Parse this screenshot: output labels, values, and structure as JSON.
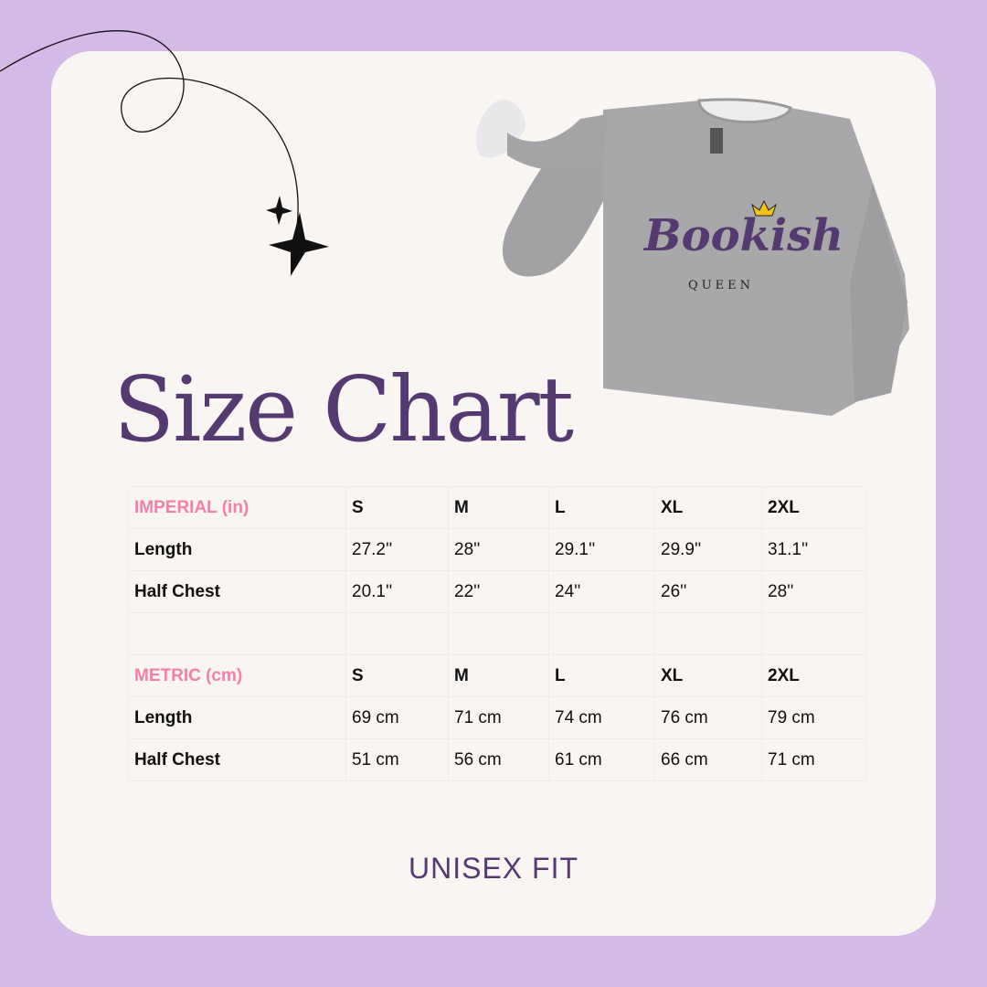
{
  "title": "Size Chart",
  "product": {
    "print_main": "Bookish",
    "print_sub": "QUEEN"
  },
  "imperial": {
    "label": "IMPERIAL (in)",
    "sizes": [
      "S",
      "M",
      "L",
      "XL",
      "2XL"
    ],
    "rows": [
      {
        "label": "Length",
        "values": [
          "27.2''",
          "28''",
          "29.1''",
          "29.9''",
          "31.1''"
        ]
      },
      {
        "label": "Half Chest",
        "values": [
          "20.1''",
          "22''",
          "24''",
          "26''",
          "28''"
        ]
      }
    ]
  },
  "metric": {
    "label": "METRIC (cm)",
    "sizes": [
      "S",
      "M",
      "L",
      "XL",
      "2XL"
    ],
    "rows": [
      {
        "label": "Length",
        "values": [
          "69 cm",
          "71 cm",
          "74 cm",
          "76 cm",
          "79 cm"
        ]
      },
      {
        "label": "Half Chest",
        "values": [
          "51 cm",
          "56 cm",
          "61 cm",
          "66 cm",
          "71 cm"
        ]
      }
    ]
  },
  "footer": "UNISEX FIT",
  "colors": {
    "background": "#d4bae6",
    "card": "#f8f5f2",
    "title": "#553a72",
    "header": "#f47fa8"
  }
}
